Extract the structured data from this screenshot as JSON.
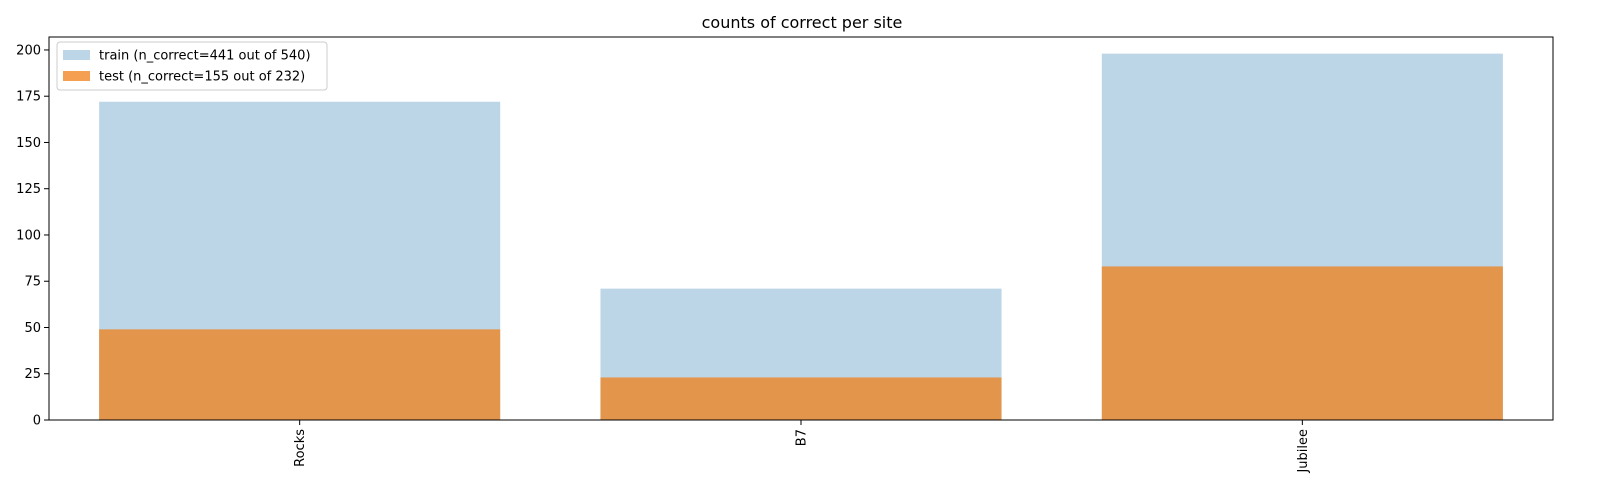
{
  "chart_data": {
    "type": "bar",
    "title": "counts of correct per site",
    "xlabel": "",
    "ylabel": "",
    "categories": [
      "Rocks",
      "B7",
      "Jubilee"
    ],
    "ylim": [
      0,
      207
    ],
    "yticks": [
      0,
      25,
      50,
      75,
      100,
      125,
      150,
      175,
      200
    ],
    "series": [
      {
        "name": "train (n_correct=441 out of 540)",
        "values": [
          172,
          71,
          198
        ],
        "color": "#a6c8e0",
        "opacity": 0.75
      },
      {
        "name": "test (n_correct=155 out of 232)",
        "values": [
          49,
          23,
          83
        ],
        "color": "#f07f17",
        "opacity": 0.75
      }
    ],
    "legend_position": "top-left",
    "grid": false,
    "overlaid": true
  }
}
